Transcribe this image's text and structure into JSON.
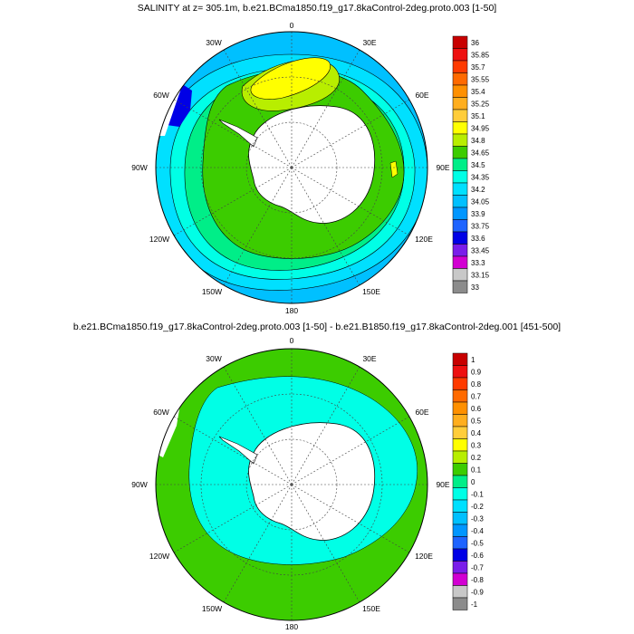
{
  "panel1": {
    "title": "SALINITY at z= 305.1m, b.e21.BCma1850.f19_g17.8kaControl-2deg.proto.003 [1-50]",
    "colorbar": {
      "labels": [
        "36",
        "35.85",
        "35.7",
        "35.55",
        "35.4",
        "35.25",
        "35.1",
        "34.95",
        "34.8",
        "34.65",
        "34.5",
        "34.35",
        "34.2",
        "34.05",
        "33.9",
        "33.75",
        "33.6",
        "33.45",
        "33.3",
        "33.15",
        "33"
      ],
      "colors": [
        "#c80000",
        "#ee1010",
        "#ff3a00",
        "#ff6a00",
        "#ff9000",
        "#ffae1e",
        "#ffcd3a",
        "#ffff00",
        "#b8ee00",
        "#3ccc00",
        "#00ee88",
        "#00ffe6",
        "#00e0ff",
        "#00c0ff",
        "#0096ff",
        "#1e64ff",
        "#0000e6",
        "#7a1eea",
        "#d200d2",
        "#c8c8c8",
        "#8c8c8c"
      ]
    },
    "lon_labels": [
      "0",
      "30E",
      "60E",
      "90E",
      "120E",
      "150E",
      "180",
      "150W",
      "120W",
      "90W",
      "60W",
      "30W"
    ]
  },
  "panel2": {
    "title": "b.e21.BCma1850.f19_g17.8kaControl-2deg.proto.003 [1-50] - b.e21.B1850.f19_g17.8kaControl-2deg.001 [451-500]",
    "colorbar": {
      "labels": [
        "1",
        "0.9",
        "0.8",
        "0.7",
        "0.6",
        "0.5",
        "0.4",
        "0.3",
        "0.2",
        "0.1",
        "0",
        "-0.1",
        "-0.2",
        "-0.3",
        "-0.4",
        "-0.5",
        "-0.6",
        "-0.7",
        "-0.8",
        "-0.9",
        "-1"
      ],
      "colors": [
        "#c80000",
        "#ee1010",
        "#ff3a00",
        "#ff6a00",
        "#ff9000",
        "#ffae1e",
        "#ffcd3a",
        "#ffff00",
        "#b8ee00",
        "#3ccc00",
        "#00ee88",
        "#00ffe6",
        "#00e0ff",
        "#00c0ff",
        "#0096ff",
        "#1e64ff",
        "#0000e6",
        "#7a1eea",
        "#d200d2",
        "#c8c8c8",
        "#8c8c8c"
      ]
    },
    "lon_labels": [
      "0",
      "30E",
      "60E",
      "90E",
      "120E",
      "150E",
      "180",
      "150W",
      "120W",
      "90W",
      "60W",
      "30W"
    ]
  }
}
